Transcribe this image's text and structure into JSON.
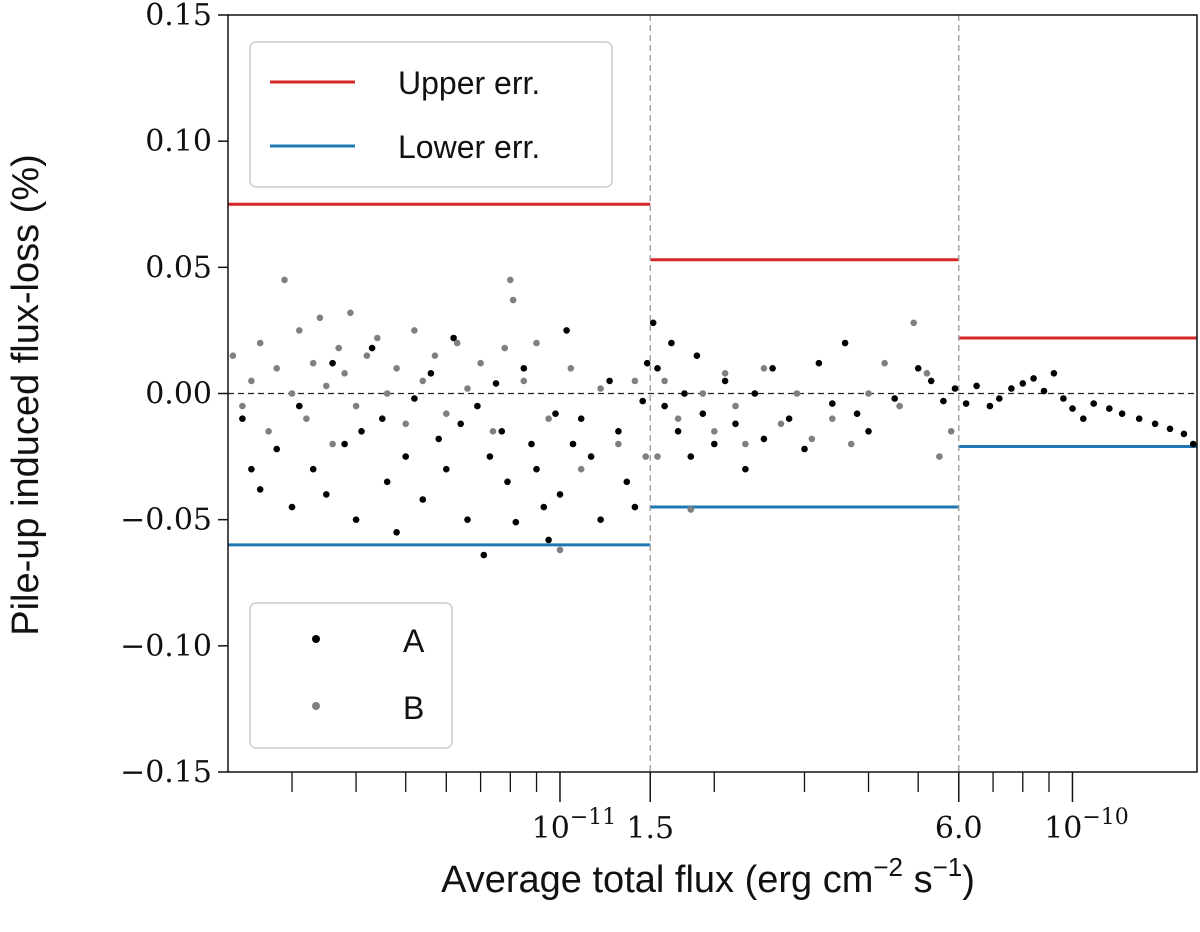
{
  "chart_data": {
    "type": "scatter",
    "xlabel": "Average total flux (erg cm",
    "xlabel_parts": {
      "base": "Average total flux (erg cm",
      "exp1": "−2",
      "mid": " s",
      "exp2": "−1",
      "end": ")"
    },
    "ylabel": "Pile-up induced flux-loss (%)",
    "x_scale": "log",
    "xlim": [
      2.25e-12,
      1.75e-10
    ],
    "ylim": [
      -0.15,
      0.15
    ],
    "y_ticks": [
      0.15,
      0.1,
      0.05,
      0.0,
      -0.05,
      -0.1,
      -0.15
    ],
    "y_tick_labels": [
      "0.15",
      "0.10",
      "0.05",
      "0.00",
      "−0.05",
      "−0.10",
      "−0.15"
    ],
    "x_ticks": [
      {
        "value": 1e-11,
        "base": "10",
        "exp": "−11"
      },
      {
        "value": 1.5e-11,
        "base": "1.5",
        "exp": ""
      },
      {
        "value": 6e-11,
        "base": "6.0",
        "exp": ""
      },
      {
        "value": 1e-10,
        "base": "10",
        "exp": "−10"
      }
    ],
    "bin_edges": [
      1.5e-11,
      6e-11
    ],
    "zero_line": 0.0,
    "grid": false,
    "error_bands": [
      {
        "name": "Upper err.",
        "color": "#d62728",
        "segments": [
          [
            2.25e-12,
            1.5e-11,
            0.075
          ],
          [
            1.5e-11,
            6e-11,
            0.053
          ],
          [
            6e-11,
            1.75e-10,
            0.022
          ]
        ]
      },
      {
        "name": "Lower err.",
        "color": "#1f77b4",
        "segments": [
          [
            2.25e-12,
            1.5e-11,
            -0.06
          ],
          [
            1.5e-11,
            6e-11,
            -0.045
          ],
          [
            6e-11,
            1.75e-10,
            -0.021
          ]
        ]
      }
    ],
    "series": [
      {
        "name": "A",
        "color": "#000000",
        "points": [
          [
            2.4e-12,
            -0.01
          ],
          [
            2.5e-12,
            -0.03
          ],
          [
            2.6e-12,
            -0.038
          ],
          [
            2.8e-12,
            -0.022
          ],
          [
            3e-12,
            -0.045
          ],
          [
            3.1e-12,
            -0.005
          ],
          [
            3.3e-12,
            -0.03
          ],
          [
            3.5e-12,
            -0.04
          ],
          [
            3.6e-12,
            0.012
          ],
          [
            3.8e-12,
            -0.02
          ],
          [
            4e-12,
            -0.05
          ],
          [
            4.1e-12,
            -0.015
          ],
          [
            4.3e-12,
            0.018
          ],
          [
            4.5e-12,
            -0.01
          ],
          [
            4.6e-12,
            -0.035
          ],
          [
            4.8e-12,
            -0.055
          ],
          [
            5e-12,
            -0.025
          ],
          [
            5.2e-12,
            -0.002
          ],
          [
            5.4e-12,
            -0.042
          ],
          [
            5.6e-12,
            0.008
          ],
          [
            5.8e-12,
            -0.018
          ],
          [
            6e-12,
            -0.03
          ],
          [
            6.2e-12,
            0.022
          ],
          [
            6.4e-12,
            -0.012
          ],
          [
            6.6e-12,
            -0.05
          ],
          [
            6.9e-12,
            -0.005
          ],
          [
            7.1e-12,
            -0.064
          ],
          [
            7.3e-12,
            -0.025
          ],
          [
            7.5e-12,
            0.004
          ],
          [
            7.7e-12,
            -0.015
          ],
          [
            7.9e-12,
            -0.035
          ],
          [
            8.2e-12,
            -0.051
          ],
          [
            8.5e-12,
            0.01
          ],
          [
            8.8e-12,
            -0.02
          ],
          [
            9e-12,
            -0.03
          ],
          [
            9.3e-12,
            -0.045
          ],
          [
            9.5e-12,
            -0.058
          ],
          [
            9.8e-12,
            -0.008
          ],
          [
            1e-11,
            -0.04
          ],
          [
            1.03e-11,
            0.025
          ],
          [
            1.06e-11,
            -0.02
          ],
          [
            1.1e-11,
            -0.01
          ],
          [
            1.15e-11,
            -0.025
          ],
          [
            1.2e-11,
            -0.05
          ],
          [
            1.25e-11,
            0.005
          ],
          [
            1.3e-11,
            -0.015
          ],
          [
            1.35e-11,
            -0.035
          ],
          [
            1.4e-11,
            -0.045
          ],
          [
            1.45e-11,
            -0.003
          ],
          [
            1.48e-11,
            0.012
          ],
          [
            1.52e-11,
            0.028
          ],
          [
            1.55e-11,
            0.01
          ],
          [
            1.6e-11,
            -0.005
          ],
          [
            1.65e-11,
            0.02
          ],
          [
            1.7e-11,
            -0.015
          ],
          [
            1.75e-11,
            0.0
          ],
          [
            1.8e-11,
            -0.025
          ],
          [
            1.85e-11,
            0.015
          ],
          [
            1.9e-11,
            -0.008
          ],
          [
            2e-11,
            -0.02
          ],
          [
            2.1e-11,
            0.005
          ],
          [
            2.2e-11,
            -0.012
          ],
          [
            2.3e-11,
            -0.03
          ],
          [
            2.4e-11,
            0.0
          ],
          [
            2.5e-11,
            -0.018
          ],
          [
            2.6e-11,
            0.01
          ],
          [
            2.8e-11,
            -0.01
          ],
          [
            3e-11,
            -0.022
          ],
          [
            3.2e-11,
            0.012
          ],
          [
            3.4e-11,
            -0.004
          ],
          [
            3.6e-11,
            0.02
          ],
          [
            3.8e-11,
            -0.008
          ],
          [
            4e-11,
            -0.015
          ],
          [
            4.5e-11,
            -0.002
          ],
          [
            5e-11,
            0.01
          ],
          [
            5.3e-11,
            0.005
          ],
          [
            5.6e-11,
            -0.003
          ],
          [
            5.9e-11,
            0.002
          ],
          [
            6.2e-11,
            -0.004
          ],
          [
            6.5e-11,
            0.003
          ],
          [
            6.9e-11,
            -0.005
          ],
          [
            7.2e-11,
            -0.002
          ],
          [
            7.6e-11,
            0.002
          ],
          [
            8e-11,
            0.004
          ],
          [
            8.4e-11,
            0.006
          ],
          [
            8.8e-11,
            0.001
          ],
          [
            9.2e-11,
            0.008
          ],
          [
            9.6e-11,
            -0.002
          ],
          [
            1e-10,
            -0.006
          ],
          [
            1.05e-10,
            -0.01
          ],
          [
            1.1e-10,
            -0.004
          ],
          [
            1.18e-10,
            -0.006
          ],
          [
            1.25e-10,
            -0.008
          ],
          [
            1.35e-10,
            -0.01
          ],
          [
            1.45e-10,
            -0.012
          ],
          [
            1.55e-10,
            -0.014
          ],
          [
            1.65e-10,
            -0.016
          ],
          [
            1.72e-10,
            -0.02
          ]
        ]
      },
      {
        "name": "B",
        "color": "#808080",
        "points": [
          [
            2.3e-12,
            0.015
          ],
          [
            2.4e-12,
            -0.005
          ],
          [
            2.5e-12,
            0.005
          ],
          [
            2.6e-12,
            0.02
          ],
          [
            2.7e-12,
            -0.015
          ],
          [
            2.8e-12,
            0.01
          ],
          [
            2.9e-12,
            0.045
          ],
          [
            3e-12,
            0.0
          ],
          [
            3.1e-12,
            0.025
          ],
          [
            3.2e-12,
            -0.01
          ],
          [
            3.3e-12,
            0.012
          ],
          [
            3.4e-12,
            0.03
          ],
          [
            3.5e-12,
            0.003
          ],
          [
            3.6e-12,
            -0.02
          ],
          [
            3.7e-12,
            0.018
          ],
          [
            3.8e-12,
            0.008
          ],
          [
            3.9e-12,
            0.032
          ],
          [
            4e-12,
            -0.005
          ],
          [
            4.2e-12,
            0.015
          ],
          [
            4.4e-12,
            0.022
          ],
          [
            4.6e-12,
            0.0
          ],
          [
            4.8e-12,
            0.01
          ],
          [
            5e-12,
            -0.012
          ],
          [
            5.2e-12,
            0.025
          ],
          [
            5.4e-12,
            0.005
          ],
          [
            5.7e-12,
            0.015
          ],
          [
            6e-12,
            -0.008
          ],
          [
            6.3e-12,
            0.02
          ],
          [
            6.6e-12,
            0.002
          ],
          [
            7e-12,
            0.012
          ],
          [
            7.4e-12,
            -0.015
          ],
          [
            7.8e-12,
            0.018
          ],
          [
            8e-12,
            0.045
          ],
          [
            8.1e-12,
            0.037
          ],
          [
            8.5e-12,
            0.005
          ],
          [
            9e-12,
            0.02
          ],
          [
            9.5e-12,
            -0.01
          ],
          [
            1e-11,
            -0.062
          ],
          [
            1.05e-11,
            0.01
          ],
          [
            1.1e-11,
            -0.03
          ],
          [
            1.2e-11,
            0.002
          ],
          [
            1.3e-11,
            -0.02
          ],
          [
            1.4e-11,
            0.005
          ],
          [
            1.47e-11,
            -0.025
          ],
          [
            1.55e-11,
            -0.025
          ],
          [
            1.6e-11,
            0.005
          ],
          [
            1.7e-11,
            -0.01
          ],
          [
            1.8e-11,
            -0.046
          ],
          [
            1.9e-11,
            0.0
          ],
          [
            2e-11,
            -0.015
          ],
          [
            2.1e-11,
            0.008
          ],
          [
            2.2e-11,
            -0.005
          ],
          [
            2.3e-11,
            -0.02
          ],
          [
            2.5e-11,
            0.01
          ],
          [
            2.7e-11,
            -0.012
          ],
          [
            2.9e-11,
            0.0
          ],
          [
            3.1e-11,
            -0.018
          ],
          [
            3.4e-11,
            -0.01
          ],
          [
            3.7e-11,
            -0.02
          ],
          [
            4e-11,
            0.0
          ],
          [
            4.3e-11,
            0.012
          ],
          [
            4.6e-11,
            -0.005
          ],
          [
            4.9e-11,
            0.028
          ],
          [
            5.2e-11,
            0.008
          ],
          [
            5.5e-11,
            -0.025
          ],
          [
            5.8e-11,
            -0.015
          ]
        ]
      }
    ],
    "legends": {
      "lines": {
        "placement": "upper-left",
        "entries": [
          "Upper err.",
          "Lower err."
        ]
      },
      "markers": {
        "placement": "lower-left",
        "entries": [
          "A",
          "B"
        ]
      }
    }
  }
}
